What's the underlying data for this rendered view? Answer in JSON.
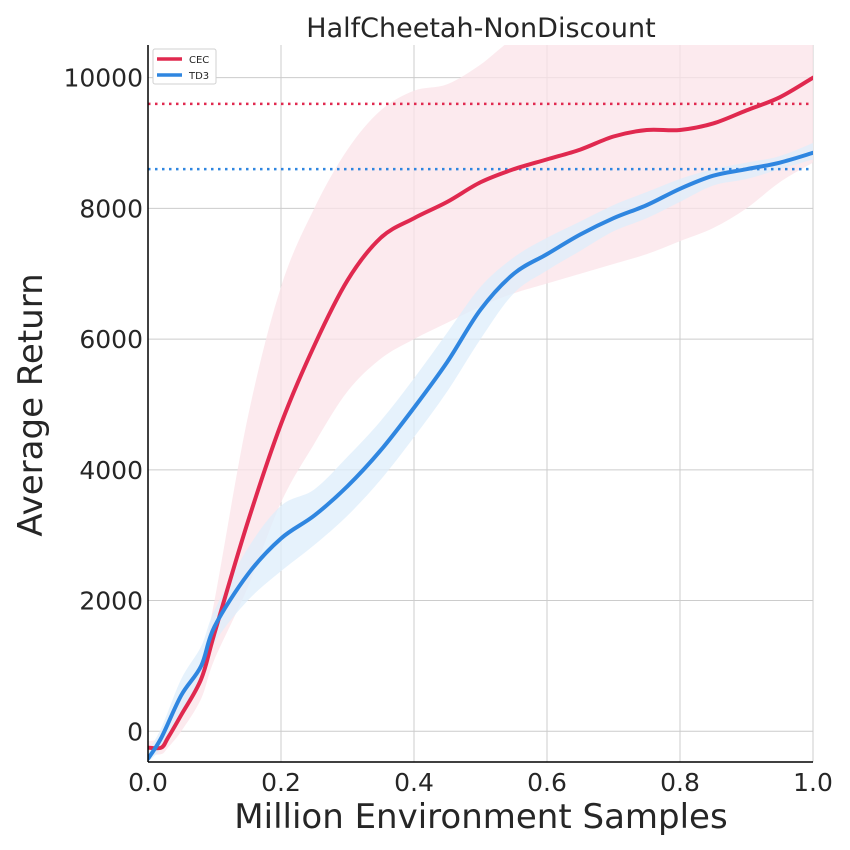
{
  "chart_data": {
    "type": "line",
    "title": "HalfCheetah-NonDiscount",
    "xlabel": "Million Environment Samples",
    "ylabel": "Average Return",
    "xlim": [
      0.0,
      1.0
    ],
    "ylim": [
      -470,
      10500
    ],
    "x_ticks": [
      0.0,
      0.2,
      0.4,
      0.6,
      0.8,
      1.0
    ],
    "x_tick_labels": [
      "0.0",
      "0.2",
      "0.4",
      "0.6",
      "0.8",
      "1.0"
    ],
    "y_ticks": [
      0,
      2000,
      4000,
      6000,
      8000,
      10000
    ],
    "y_tick_labels": [
      "0",
      "2000",
      "4000",
      "6000",
      "8000",
      "10000"
    ],
    "grid": true,
    "legend_position": "top-left",
    "series": [
      {
        "name": "CEC",
        "color": "#e0294f",
        "band_color": "#fbe3e8",
        "x": [
          0.0,
          0.02,
          0.03,
          0.05,
          0.08,
          0.1,
          0.15,
          0.2,
          0.25,
          0.3,
          0.35,
          0.4,
          0.45,
          0.5,
          0.55,
          0.6,
          0.65,
          0.7,
          0.75,
          0.8,
          0.85,
          0.9,
          0.95,
          1.0
        ],
        "y": [
          -250,
          -250,
          -100,
          250,
          800,
          1500,
          3200,
          4700,
          5900,
          6900,
          7550,
          7850,
          8100,
          8400,
          8600,
          8750,
          8900,
          9100,
          9200,
          9200,
          9300,
          9500,
          9700,
          10000
        ],
        "upper": [
          -150,
          -100,
          100,
          500,
          1100,
          2000,
          4800,
          6800,
          8000,
          8900,
          9500,
          9800,
          9900,
          10200,
          10600,
          10800,
          10900,
          10900,
          10900,
          10900,
          10900,
          10900,
          10900,
          10900
        ],
        "lower": [
          -350,
          -350,
          -250,
          0,
          500,
          1100,
          2200,
          3500,
          4400,
          5200,
          5700,
          6000,
          6250,
          6500,
          6700,
          6850,
          7000,
          7150,
          7300,
          7500,
          7700,
          8000,
          8400,
          8700
        ]
      },
      {
        "name": "TD3",
        "color": "#2f86e0",
        "band_color": "#deedfb",
        "x": [
          0.0,
          0.02,
          0.05,
          0.08,
          0.1,
          0.15,
          0.2,
          0.25,
          0.3,
          0.35,
          0.4,
          0.45,
          0.5,
          0.55,
          0.6,
          0.65,
          0.7,
          0.75,
          0.8,
          0.85,
          0.9,
          0.95,
          1.0
        ],
        "y": [
          -420,
          -100,
          550,
          1000,
          1600,
          2400,
          2950,
          3300,
          3750,
          4300,
          4950,
          5650,
          6450,
          7000,
          7300,
          7600,
          7850,
          8050,
          8300,
          8500,
          8600,
          8700,
          8850
        ],
        "upper": [
          -300,
          50,
          800,
          1300,
          1850,
          2800,
          3450,
          3700,
          4200,
          4750,
          5400,
          6100,
          6800,
          7250,
          7550,
          7800,
          8050,
          8250,
          8450,
          8600,
          8700,
          8800,
          9000
        ],
        "lower": [
          -470,
          -250,
          300,
          750,
          1350,
          2000,
          2450,
          2850,
          3300,
          3850,
          4500,
          5200,
          6000,
          6700,
          7050,
          7350,
          7650,
          7850,
          8100,
          8350,
          8450,
          8600,
          8750
        ]
      }
    ],
    "reference_lines": [
      {
        "y": 9600,
        "color": "#e0294f",
        "style": "dotted"
      },
      {
        "y": 8600,
        "color": "#2f86e0",
        "style": "dotted"
      }
    ]
  }
}
